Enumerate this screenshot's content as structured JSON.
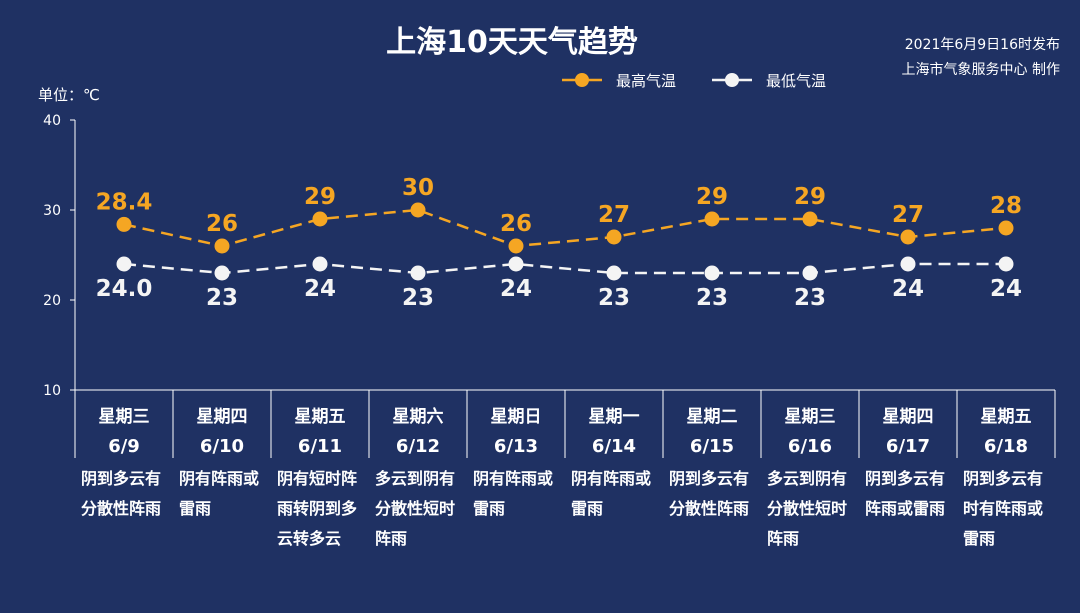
{
  "publish_info": {
    "line1": "2021年6月9日16时发布",
    "line2": "上海市气象服务中心 制作"
  },
  "colors": {
    "background": "#1f3163",
    "high": "#f5a623",
    "low": "#f4f4f4",
    "axis": "#ffffff"
  },
  "chart_data": {
    "type": "line",
    "title": "上海10天天气趋势",
    "ylabel": "单位：℃",
    "ylim": [
      10,
      40
    ],
    "yticks": [
      10,
      20,
      30,
      40
    ],
    "grid": false,
    "legend_position": "top-right",
    "categories": [
      "6/9",
      "6/10",
      "6/11",
      "6/12",
      "6/13",
      "6/14",
      "6/15",
      "6/16",
      "6/17",
      "6/18"
    ],
    "weekdays": [
      "星期三",
      "星期四",
      "星期五",
      "星期六",
      "星期日",
      "星期一",
      "星期二",
      "星期三",
      "星期四",
      "星期五"
    ],
    "weather": [
      [
        "阴到多云有",
        "分散性阵雨"
      ],
      [
        "阴有阵雨或",
        "雷雨"
      ],
      [
        "阴有短时阵",
        "雨转阴到多",
        "云转多云"
      ],
      [
        "多云到阴有",
        "分散性短时",
        "阵雨"
      ],
      [
        "阴有阵雨或",
        "雷雨"
      ],
      [
        "阴有阵雨或",
        "雷雨"
      ],
      [
        "阴到多云有",
        "分散性阵雨"
      ],
      [
        "多云到阴有",
        "分散性短时",
        "阵雨"
      ],
      [
        "阴到多云有",
        "阵雨或雷雨"
      ],
      [
        "阴到多云有",
        "时有阵雨或",
        "雷雨"
      ]
    ],
    "series": [
      {
        "name": "最高气温",
        "values": [
          28.4,
          26,
          29,
          30,
          26,
          27,
          29,
          29,
          27,
          28
        ],
        "labels": [
          "28.4",
          "26",
          "29",
          "30",
          "26",
          "27",
          "29",
          "29",
          "27",
          "28"
        ]
      },
      {
        "name": "最低气温",
        "values": [
          24.0,
          23,
          24,
          23,
          24,
          23,
          23,
          23,
          24,
          24
        ],
        "labels": [
          "24.0",
          "23",
          "24",
          "23",
          "24",
          "23",
          "23",
          "23",
          "24",
          "24"
        ]
      }
    ]
  }
}
